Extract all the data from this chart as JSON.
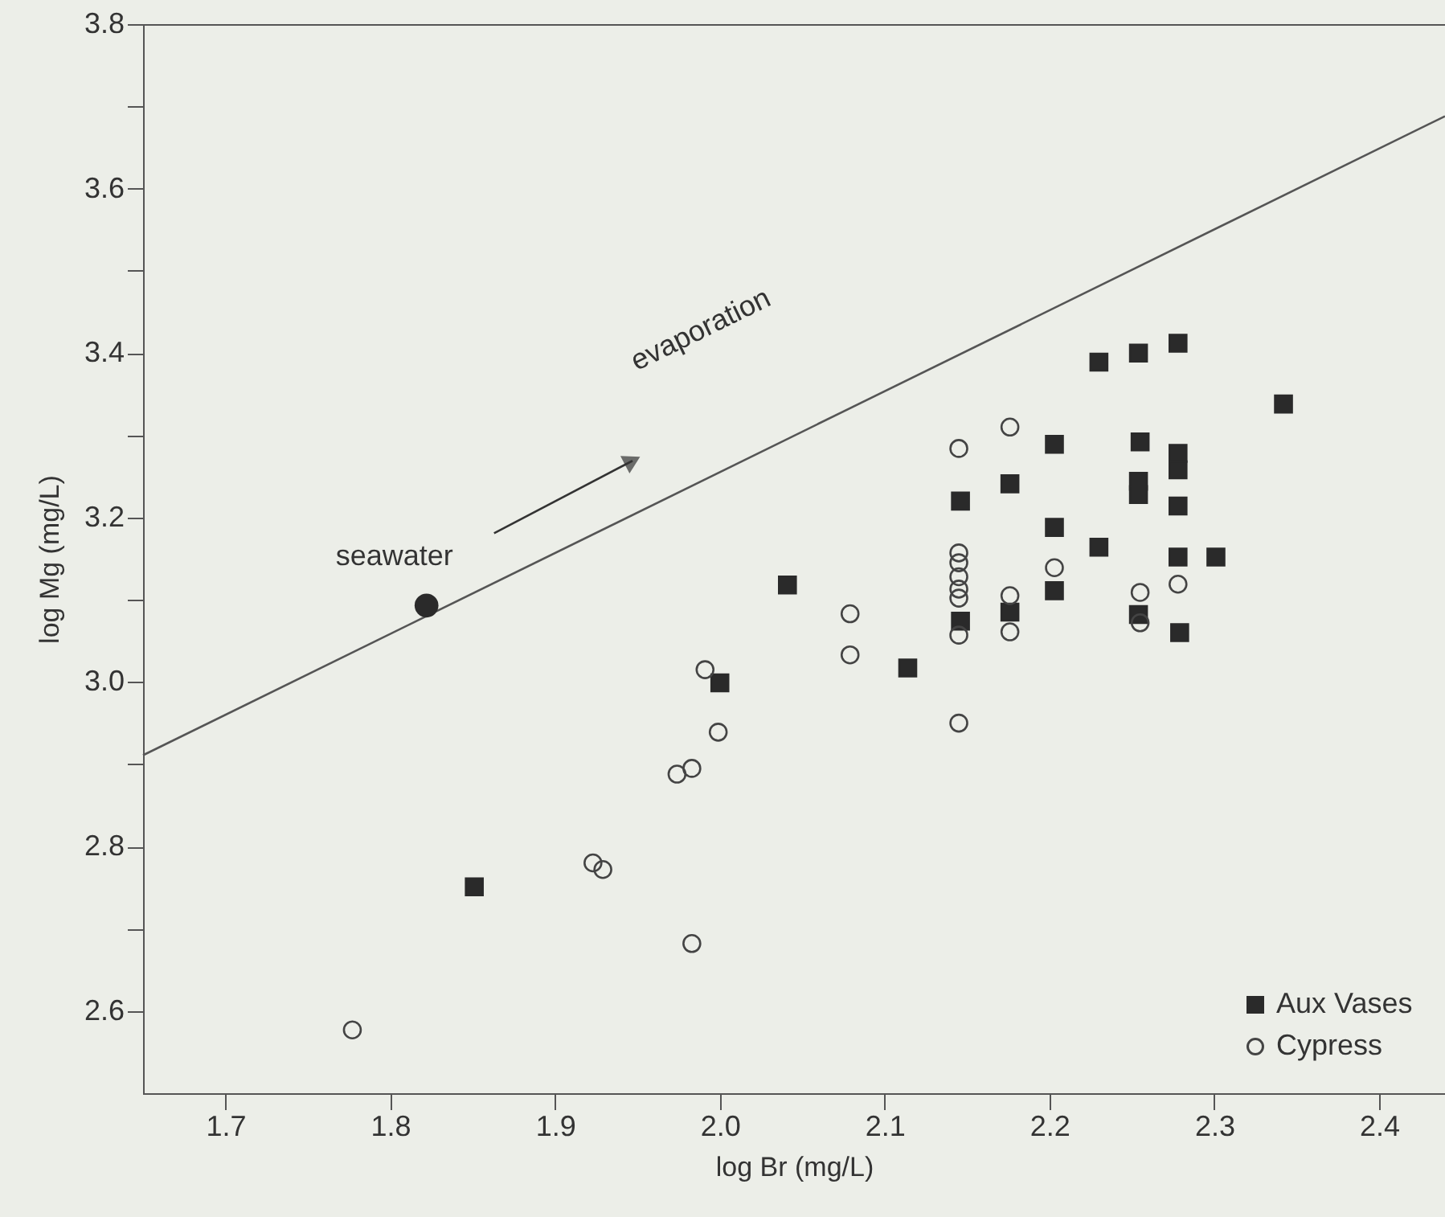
{
  "chart_data": {
    "type": "scatter",
    "xlabel": "log Br (mg/L)",
    "ylabel": "log Mg (mg/L)",
    "xlim": [
      1.65,
      2.44
    ],
    "ylim": [
      2.5,
      3.8
    ],
    "xticks": [
      1.7,
      1.8,
      1.9,
      {
        "value": 2.0,
        "label": "2.0"
      },
      2.1,
      2.2,
      2.3,
      2.4
    ],
    "yticks": [
      2.6,
      {
        "value": 2.7,
        "label": null
      },
      2.8,
      {
        "value": 2.9,
        "label": null
      },
      {
        "value": 3.0,
        "label": "3.0"
      },
      {
        "value": 3.1,
        "label": null
      },
      3.2,
      {
        "value": 3.3,
        "label": null
      },
      3.4,
      {
        "value": 3.5,
        "label": null
      },
      3.6,
      {
        "value": 3.7,
        "label": null
      },
      3.8
    ],
    "grid": false,
    "legend": "bottom right",
    "annotations": [
      {
        "text": "seawater",
        "x": 1.822,
        "y": 3.093
      },
      "evaporation"
    ],
    "series": [
      {
        "type": "line",
        "color": "#555555",
        "marker": "none",
        "x": [
          1.65,
          2.44
        ],
        "values": [
          2.911,
          3.688
        ]
      },
      {
        "type": "line",
        "color": "#333333",
        "marker": "triangle",
        "x": [
          1.863,
          1.947
        ],
        "values": [
          3.181,
          3.269
        ]
      },
      {
        "color": "#2a2a2a",
        "marker": "circle",
        "x": [
          1.822
        ],
        "values": [
          3.093
        ]
      },
      {
        "name": "Aux Vases",
        "color": "#2a2a2a",
        "marker": "square",
        "x": [
          2.23,
          2.254,
          2.278,
          2.342,
          2.203,
          2.255,
          2.278,
          2.278,
          2.176,
          2.146,
          2.254,
          2.254,
          2.278,
          2.203,
          2.23,
          2.278,
          2.301,
          2.041,
          2.203,
          2.146,
          2.176,
          2.254,
          2.279,
          2.114,
          2.0,
          1.851
        ],
        "values": [
          3.389,
          3.4,
          3.412,
          3.338,
          3.289,
          3.292,
          3.278,
          3.258,
          3.241,
          3.22,
          3.244,
          3.228,
          3.214,
          3.188,
          3.164,
          3.152,
          3.152,
          3.118,
          3.111,
          3.074,
          3.085,
          3.082,
          3.06,
          3.017,
          2.999,
          2.751
        ]
      },
      {
        "name": "Cypress",
        "color": "#444444",
        "marker": "circle",
        "x": [
          2.176,
          2.145,
          2.145,
          2.145,
          2.145,
          2.145,
          2.145,
          2.145,
          2.203,
          2.176,
          2.176,
          2.255,
          2.255,
          2.278,
          2.079,
          2.079,
          2.145,
          1.991,
          1.999,
          1.974,
          1.983,
          1.923,
          1.929,
          1.983,
          1.777
        ],
        "values": [
          3.31,
          3.284,
          3.157,
          3.145,
          3.128,
          3.113,
          3.102,
          3.057,
          3.139,
          3.105,
          3.061,
          3.109,
          3.072,
          3.119,
          3.083,
          3.033,
          2.95,
          3.015,
          2.939,
          2.888,
          2.895,
          2.78,
          2.772,
          2.682,
          2.577
        ]
      }
    ]
  }
}
